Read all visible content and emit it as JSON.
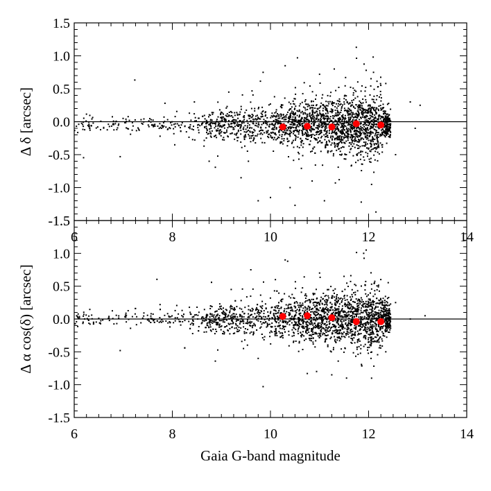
{
  "chart_data": [
    {
      "type": "scatter",
      "panel": "top",
      "title": "",
      "xlabel": "",
      "ylabel": "Δ δ [arcsec]",
      "xlim": [
        6,
        14
      ],
      "ylim": [
        -1.5,
        1.5
      ],
      "x_ticks": [
        "6",
        "8",
        "10",
        "12",
        "14"
      ],
      "y_ticks": [
        "-1.5",
        "-1.0",
        "-0.5",
        "0.0",
        "0.5",
        "1.0",
        "1.5"
      ],
      "reference_line_y": 0.0,
      "grid": false,
      "series": [
        {
          "name": "",
          "marker": "dot",
          "color": "#000000",
          "distribution": {
            "count": 2300,
            "mean": -0.05,
            "x_min": 6.0,
            "x_max": 13.2,
            "x_peak": 11.7,
            "spread_at_peak": 0.22
          },
          "points": [
            [
              9.75,
              -1.2
            ],
            [
              10.0,
              -1.15
            ],
            [
              10.4,
              -1.0
            ],
            [
              10.5,
              -1.27
            ],
            [
              11.1,
              -1.2
            ],
            [
              12.15,
              -1.37
            ],
            [
              11.85,
              -1.22
            ],
            [
              9.85,
              0.75
            ],
            [
              10.3,
              0.85
            ],
            [
              10.55,
              0.97
            ],
            [
              11.75,
              1.13
            ],
            [
              11.0,
              0.72
            ],
            [
              11.3,
              0.8
            ],
            [
              12.1,
              0.75
            ],
            [
              11.95,
              0.78
            ],
            [
              12.35,
              0.58
            ],
            [
              12.85,
              0.3
            ],
            [
              13.05,
              0.25
            ],
            [
              12.95,
              -0.1
            ],
            [
              7.85,
              0.28
            ],
            [
              7.75,
              -0.22
            ],
            [
              8.45,
              0.3
            ],
            [
              8.05,
              -0.35
            ],
            [
              8.75,
              -0.6
            ],
            [
              9.4,
              -0.85
            ],
            [
              9.15,
              0.45
            ],
            [
              9.55,
              -0.6
            ],
            [
              10.85,
              -0.9
            ],
            [
              11.4,
              -0.88
            ],
            [
              12.55,
              -0.5
            ]
          ]
        },
        {
          "name": "",
          "marker": "large-dot",
          "color": "#ff0000",
          "x": [
            10.25,
            10.75,
            11.25,
            11.75,
            12.25
          ],
          "y": [
            -0.08,
            -0.07,
            -0.08,
            -0.03,
            -0.05
          ]
        }
      ]
    },
    {
      "type": "scatter",
      "panel": "bottom",
      "title": "",
      "xlabel": "Gaia G-band magnitude",
      "ylabel": "Δ α cos(δ) [arcsec]",
      "xlim": [
        6,
        14
      ],
      "ylim": [
        -1.5,
        1.5
      ],
      "x_ticks": [
        "6",
        "8",
        "10",
        "12",
        "14"
      ],
      "y_ticks": [
        "-1.5",
        "-1.0",
        "-0.5",
        "0.0",
        "0.5",
        "1.0",
        "1.5"
      ],
      "reference_line_y": 0.0,
      "grid": false,
      "series": [
        {
          "name": "",
          "marker": "dot",
          "color": "#000000",
          "distribution": {
            "count": 2300,
            "mean": 0.0,
            "x_min": 6.0,
            "x_max": 13.2,
            "x_peak": 11.7,
            "spread_at_peak": 0.22
          },
          "points": [
            [
              9.85,
              -1.03
            ],
            [
              10.3,
              0.9
            ],
            [
              10.35,
              0.88
            ],
            [
              11.0,
              0.7
            ],
            [
              11.95,
              1.05
            ],
            [
              11.9,
              1.0
            ],
            [
              11.25,
              -0.85
            ],
            [
              11.55,
              -0.9
            ],
            [
              10.75,
              -0.83
            ],
            [
              9.75,
              -0.6
            ],
            [
              9.6,
              0.75
            ],
            [
              12.55,
              0.25
            ],
            [
              12.85,
              0.0
            ],
            [
              13.15,
              0.05
            ],
            [
              7.75,
              0.22
            ],
            [
              7.95,
              -0.12
            ],
            [
              8.2,
              0.13
            ],
            [
              6.05,
              0.05
            ],
            [
              9.2,
              0.45
            ],
            [
              9.45,
              -0.45
            ],
            [
              12.05,
              -0.6
            ],
            [
              12.35,
              -0.5
            ],
            [
              10.1,
              0.6
            ],
            [
              11.5,
              0.65
            ],
            [
              8.65,
              -0.2
            ]
          ]
        },
        {
          "name": "",
          "marker": "large-dot",
          "color": "#ff0000",
          "x": [
            10.25,
            10.75,
            11.25,
            11.75,
            12.25
          ],
          "y": [
            0.04,
            0.05,
            0.02,
            -0.04,
            -0.04
          ]
        }
      ]
    }
  ]
}
